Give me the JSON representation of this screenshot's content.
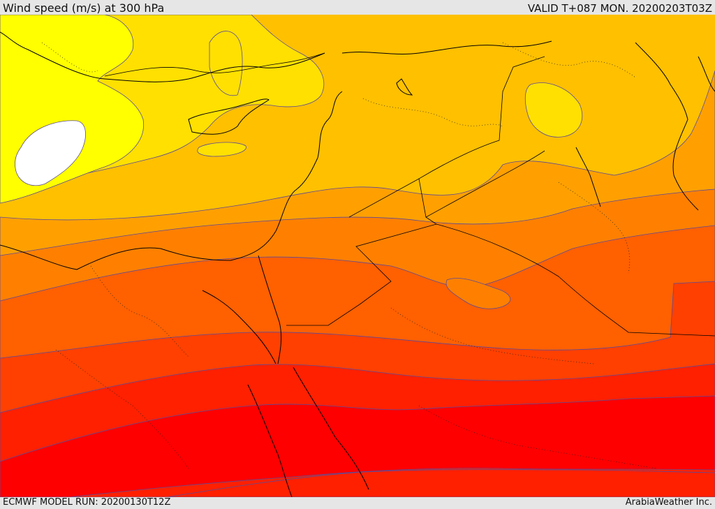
{
  "header": {
    "title": "Wind speed (m/s) at 300 hPa",
    "valid": "VALID T+087 MON. 20200203T03Z"
  },
  "footer": {
    "model_run": "ECMWF MODEL RUN: 20200130T12Z",
    "credit": "ArabiaWeather Inc."
  },
  "map": {
    "variable": "wind speed",
    "level": "300 hPa",
    "fill_colors": {
      "white_max": "#ffffff",
      "yellow_bright": "#ffff00",
      "yellow": "#ffe000",
      "gold": "#ffc000",
      "amber": "#ffa000",
      "orange": "#ff8000",
      "dark_orange": "#ff6000",
      "orange_red": "#ff4000",
      "red_orange": "#ff2000",
      "red": "#ff0000"
    },
    "contour_color": "#5a4a9a",
    "coastline_color": "#000000"
  }
}
